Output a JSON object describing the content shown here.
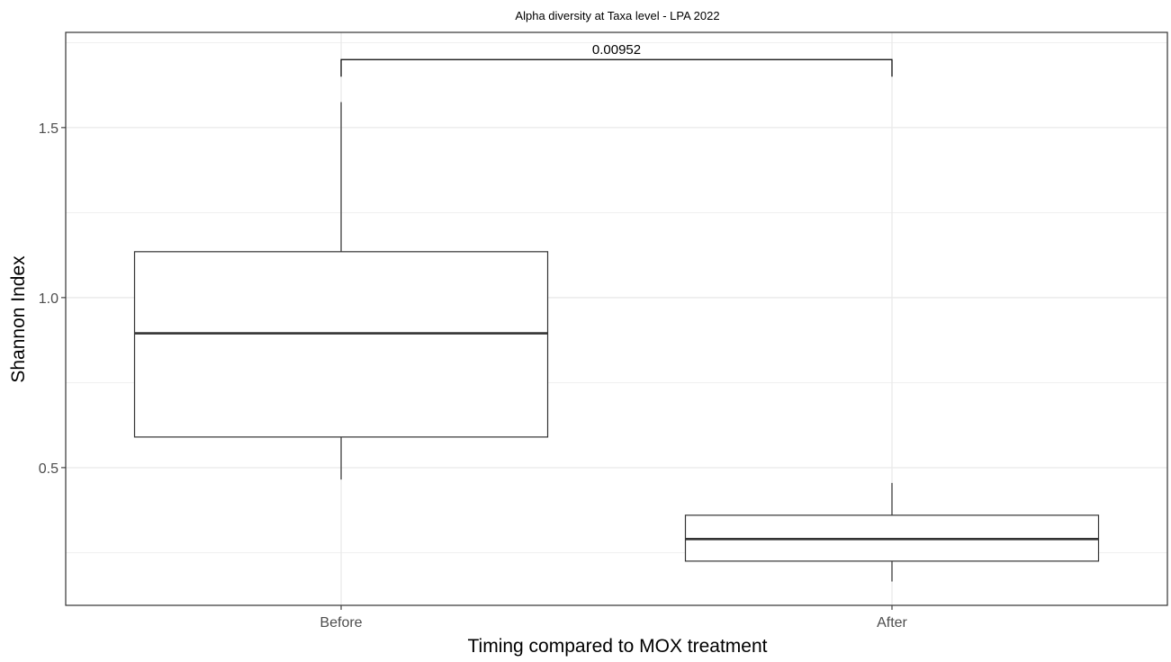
{
  "chart_data": {
    "type": "box",
    "title": "Alpha diversity at Taxa level - LPA 2022",
    "xlabel": "Timing compared to MOX treatment",
    "ylabel": "Shannon Index",
    "categories": [
      "Before",
      "After"
    ],
    "ylim": [
      0.095,
      1.78
    ],
    "yticks": [
      0.5,
      1.0,
      1.5
    ],
    "ytick_labels": [
      "0.5",
      "1.0",
      "1.5"
    ],
    "grid": true,
    "boxes": [
      {
        "category": "Before",
        "whisker_low": 0.465,
        "q1": 0.59,
        "median": 0.895,
        "q3": 1.135,
        "whisker_high": 1.575
      },
      {
        "category": "After",
        "whisker_low": 0.165,
        "q1": 0.225,
        "median": 0.29,
        "q3": 0.36,
        "whisker_high": 0.455
      }
    ],
    "comparison": {
      "from": "Before",
      "to": "After",
      "label": "0.00952",
      "y": 1.7
    },
    "colors": {
      "box_fill": "#ffffff",
      "line": "#333333",
      "grid": "#ebebeb",
      "panel_border": "#333333"
    }
  }
}
